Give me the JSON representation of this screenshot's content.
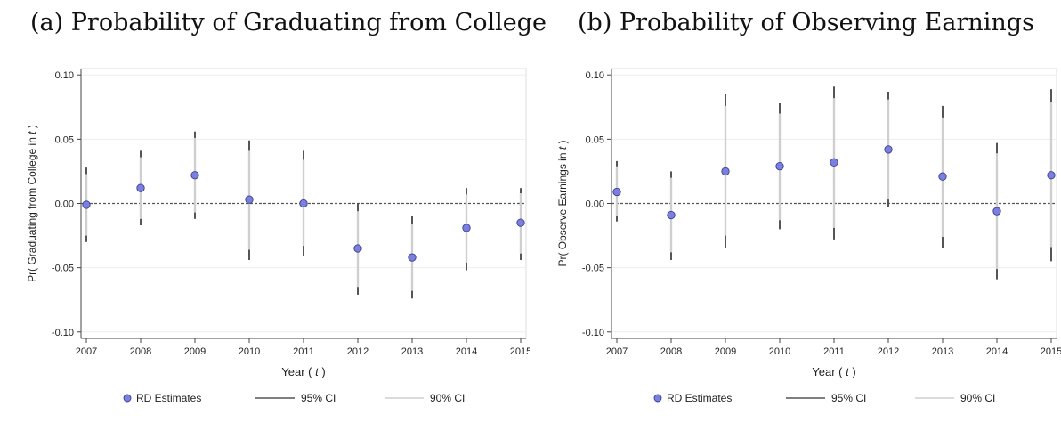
{
  "chart_data": [
    {
      "type": "scatter",
      "panel_title": "(a) Probability of Graduating from College",
      "ylabel_prefix": "Pr( Graduating from College in ",
      "ylabel_var": "t",
      "ylabel_suffix": " )",
      "xlabel_prefix": "Year ( ",
      "xlabel_var": "t",
      "xlabel_suffix": " )",
      "ylim": [
        -0.105,
        0.105
      ],
      "yticks": [
        0.1,
        0.05,
        0.0,
        -0.05,
        -0.1
      ],
      "ytick_labels": [
        "0.10",
        "0.05",
        "0.00",
        "-0.05",
        "-0.10"
      ],
      "categories": [
        "2007",
        "2008",
        "2009",
        "2010",
        "2011",
        "2012",
        "2013",
        "2014",
        "2015"
      ],
      "estimates": [
        -0.001,
        0.012,
        0.022,
        0.003,
        0.0,
        -0.035,
        -0.042,
        -0.019,
        -0.015
      ],
      "ci95": [
        [
          -0.03,
          0.028
        ],
        [
          -0.017,
          0.041
        ],
        [
          -0.012,
          0.056
        ],
        [
          -0.044,
          0.049
        ],
        [
          -0.041,
          0.041
        ],
        [
          -0.071,
          0.0
        ],
        [
          -0.074,
          -0.01
        ],
        [
          -0.052,
          0.012
        ],
        [
          -0.044,
          0.012
        ]
      ],
      "ci90": [
        [
          -0.025,
          0.023
        ],
        [
          -0.012,
          0.036
        ],
        [
          -0.007,
          0.051
        ],
        [
          -0.036,
          0.041
        ],
        [
          -0.033,
          0.034
        ],
        [
          -0.065,
          -0.006
        ],
        [
          -0.068,
          -0.016
        ],
        [
          -0.046,
          0.007
        ],
        [
          -0.039,
          0.008
        ]
      ],
      "legend": [
        "RD Estimates",
        "95% CI",
        "90% CI"
      ],
      "legend_position": "bottom",
      "reference_line": 0,
      "colors": {
        "point": "#7b7fe0",
        "point_edge": "#3a3f8f",
        "ci95": "#555555",
        "ci90": "#cfcfcf",
        "ref": "#555555",
        "grid": "#eeeeee"
      }
    },
    {
      "type": "scatter",
      "panel_title": "(b) Probability of Observing Earnings",
      "ylabel_prefix": "Pr( Observe Earnings in ",
      "ylabel_var": "t",
      "ylabel_suffix": " )",
      "xlabel_prefix": "Year ( ",
      "xlabel_var": "t",
      "xlabel_suffix": " )",
      "ylim": [
        -0.105,
        0.105
      ],
      "yticks": [
        0.1,
        0.05,
        0.0,
        -0.05,
        -0.1
      ],
      "ytick_labels": [
        "0.10",
        "0.05",
        "0.00",
        "-0.05",
        "-0.10"
      ],
      "categories": [
        "2007",
        "2008",
        "2009",
        "2010",
        "2011",
        "2012",
        "2013",
        "2014",
        "2015"
      ],
      "estimates": [
        0.009,
        -0.009,
        0.025,
        0.029,
        0.032,
        0.042,
        0.021,
        -0.006,
        0.022
      ],
      "ci95": [
        [
          -0.014,
          0.033
        ],
        [
          -0.044,
          0.025
        ],
        [
          -0.035,
          0.085
        ],
        [
          -0.02,
          0.078
        ],
        [
          -0.028,
          0.091
        ],
        [
          -0.003,
          0.087
        ],
        [
          -0.035,
          0.076
        ],
        [
          -0.059,
          0.047
        ],
        [
          -0.045,
          0.089
        ]
      ],
      "ci90": [
        [
          -0.01,
          0.029
        ],
        [
          -0.038,
          0.02
        ],
        [
          -0.025,
          0.076
        ],
        [
          -0.013,
          0.07
        ],
        [
          -0.019,
          0.082
        ],
        [
          0.003,
          0.081
        ],
        [
          -0.026,
          0.067
        ],
        [
          -0.051,
          0.039
        ],
        [
          -0.034,
          0.079
        ]
      ],
      "legend": [
        "RD Estimates",
        "95% CI",
        "90% CI"
      ],
      "legend_position": "bottom",
      "reference_line": 0,
      "colors": {
        "point": "#7b7fe0",
        "point_edge": "#3a3f8f",
        "ci95": "#555555",
        "ci90": "#cfcfcf",
        "ref": "#555555",
        "grid": "#eeeeee"
      }
    }
  ]
}
